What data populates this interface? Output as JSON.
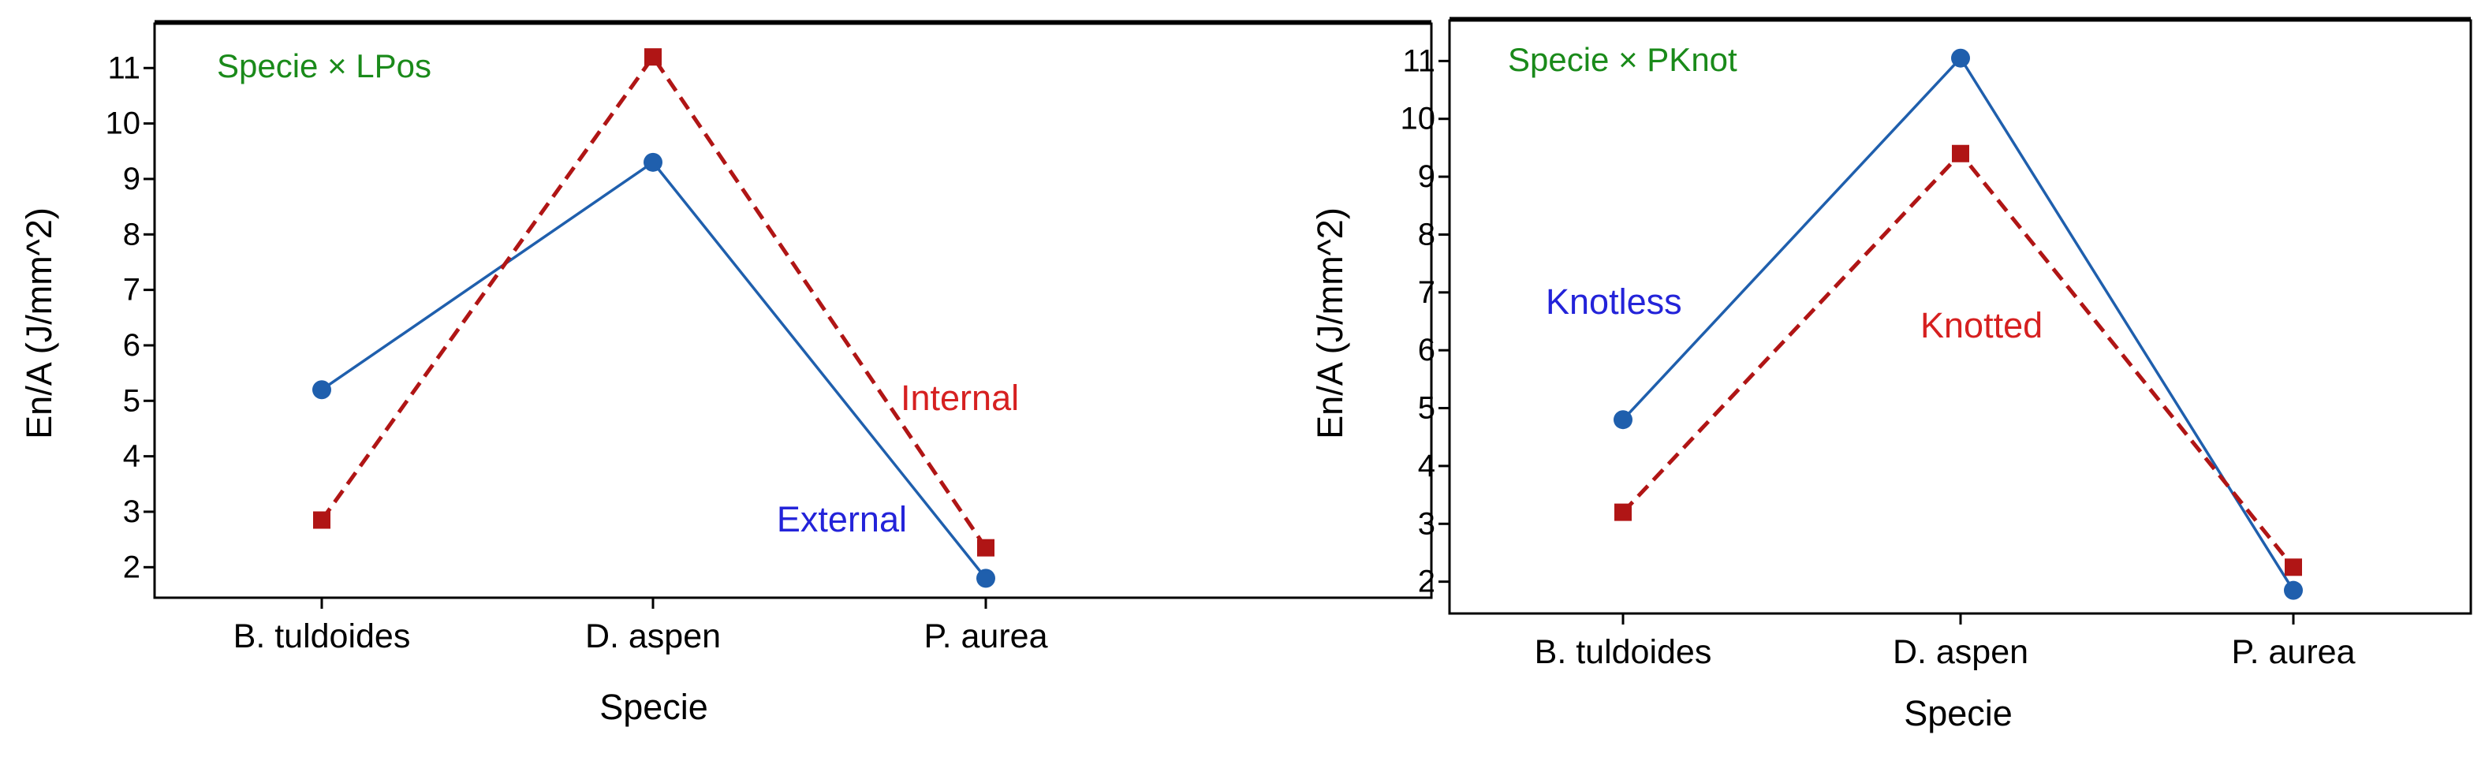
{
  "chart_data": [
    {
      "type": "line",
      "categories": [
        "B. tuldoides",
        "D. aspen",
        "P. aurea"
      ],
      "series": [
        {
          "name": "External",
          "values": [
            5.2,
            9.3,
            1.8
          ],
          "color": "#1f5fad",
          "marker": "circle",
          "dash": "solid",
          "label_color": "#2323d9"
        },
        {
          "name": "Internal",
          "values": [
            2.85,
            11.2,
            2.35
          ],
          "color": "#b01515",
          "marker": "square",
          "dash": "dashed",
          "label_color": "#d62020"
        }
      ],
      "annotation": "Specie × LPos",
      "annotation_color": "#1a8a1a",
      "xlabel": "Specie",
      "ylabel": "En/A (J/mm^2)",
      "yticks": [
        2,
        3,
        4,
        5,
        6,
        7,
        8,
        9,
        10,
        11
      ],
      "ylim": [
        1.45,
        11.8
      ],
      "grid": false,
      "legend": "none"
    },
    {
      "type": "line",
      "categories": [
        "B. tuldoides",
        "D. aspen",
        "P. aurea"
      ],
      "series": [
        {
          "name": "Knotless",
          "values": [
            4.8,
            11.05,
            1.85
          ],
          "color": "#1f5fad",
          "marker": "circle",
          "dash": "solid",
          "label_color": "#2323d9"
        },
        {
          "name": "Knotted",
          "values": [
            3.2,
            9.4,
            2.25
          ],
          "color": "#b01515",
          "marker": "square",
          "dash": "dashed",
          "label_color": "#d62020"
        }
      ],
      "annotation": "Specie × PKnot",
      "annotation_color": "#1a8a1a",
      "xlabel": "Specie",
      "ylabel": "En/A (J/mm^2)",
      "yticks": [
        2,
        3,
        4,
        5,
        6,
        7,
        8,
        9,
        10,
        11
      ],
      "ylim": [
        1.45,
        11.7
      ],
      "grid": false,
      "legend": "none"
    }
  ]
}
